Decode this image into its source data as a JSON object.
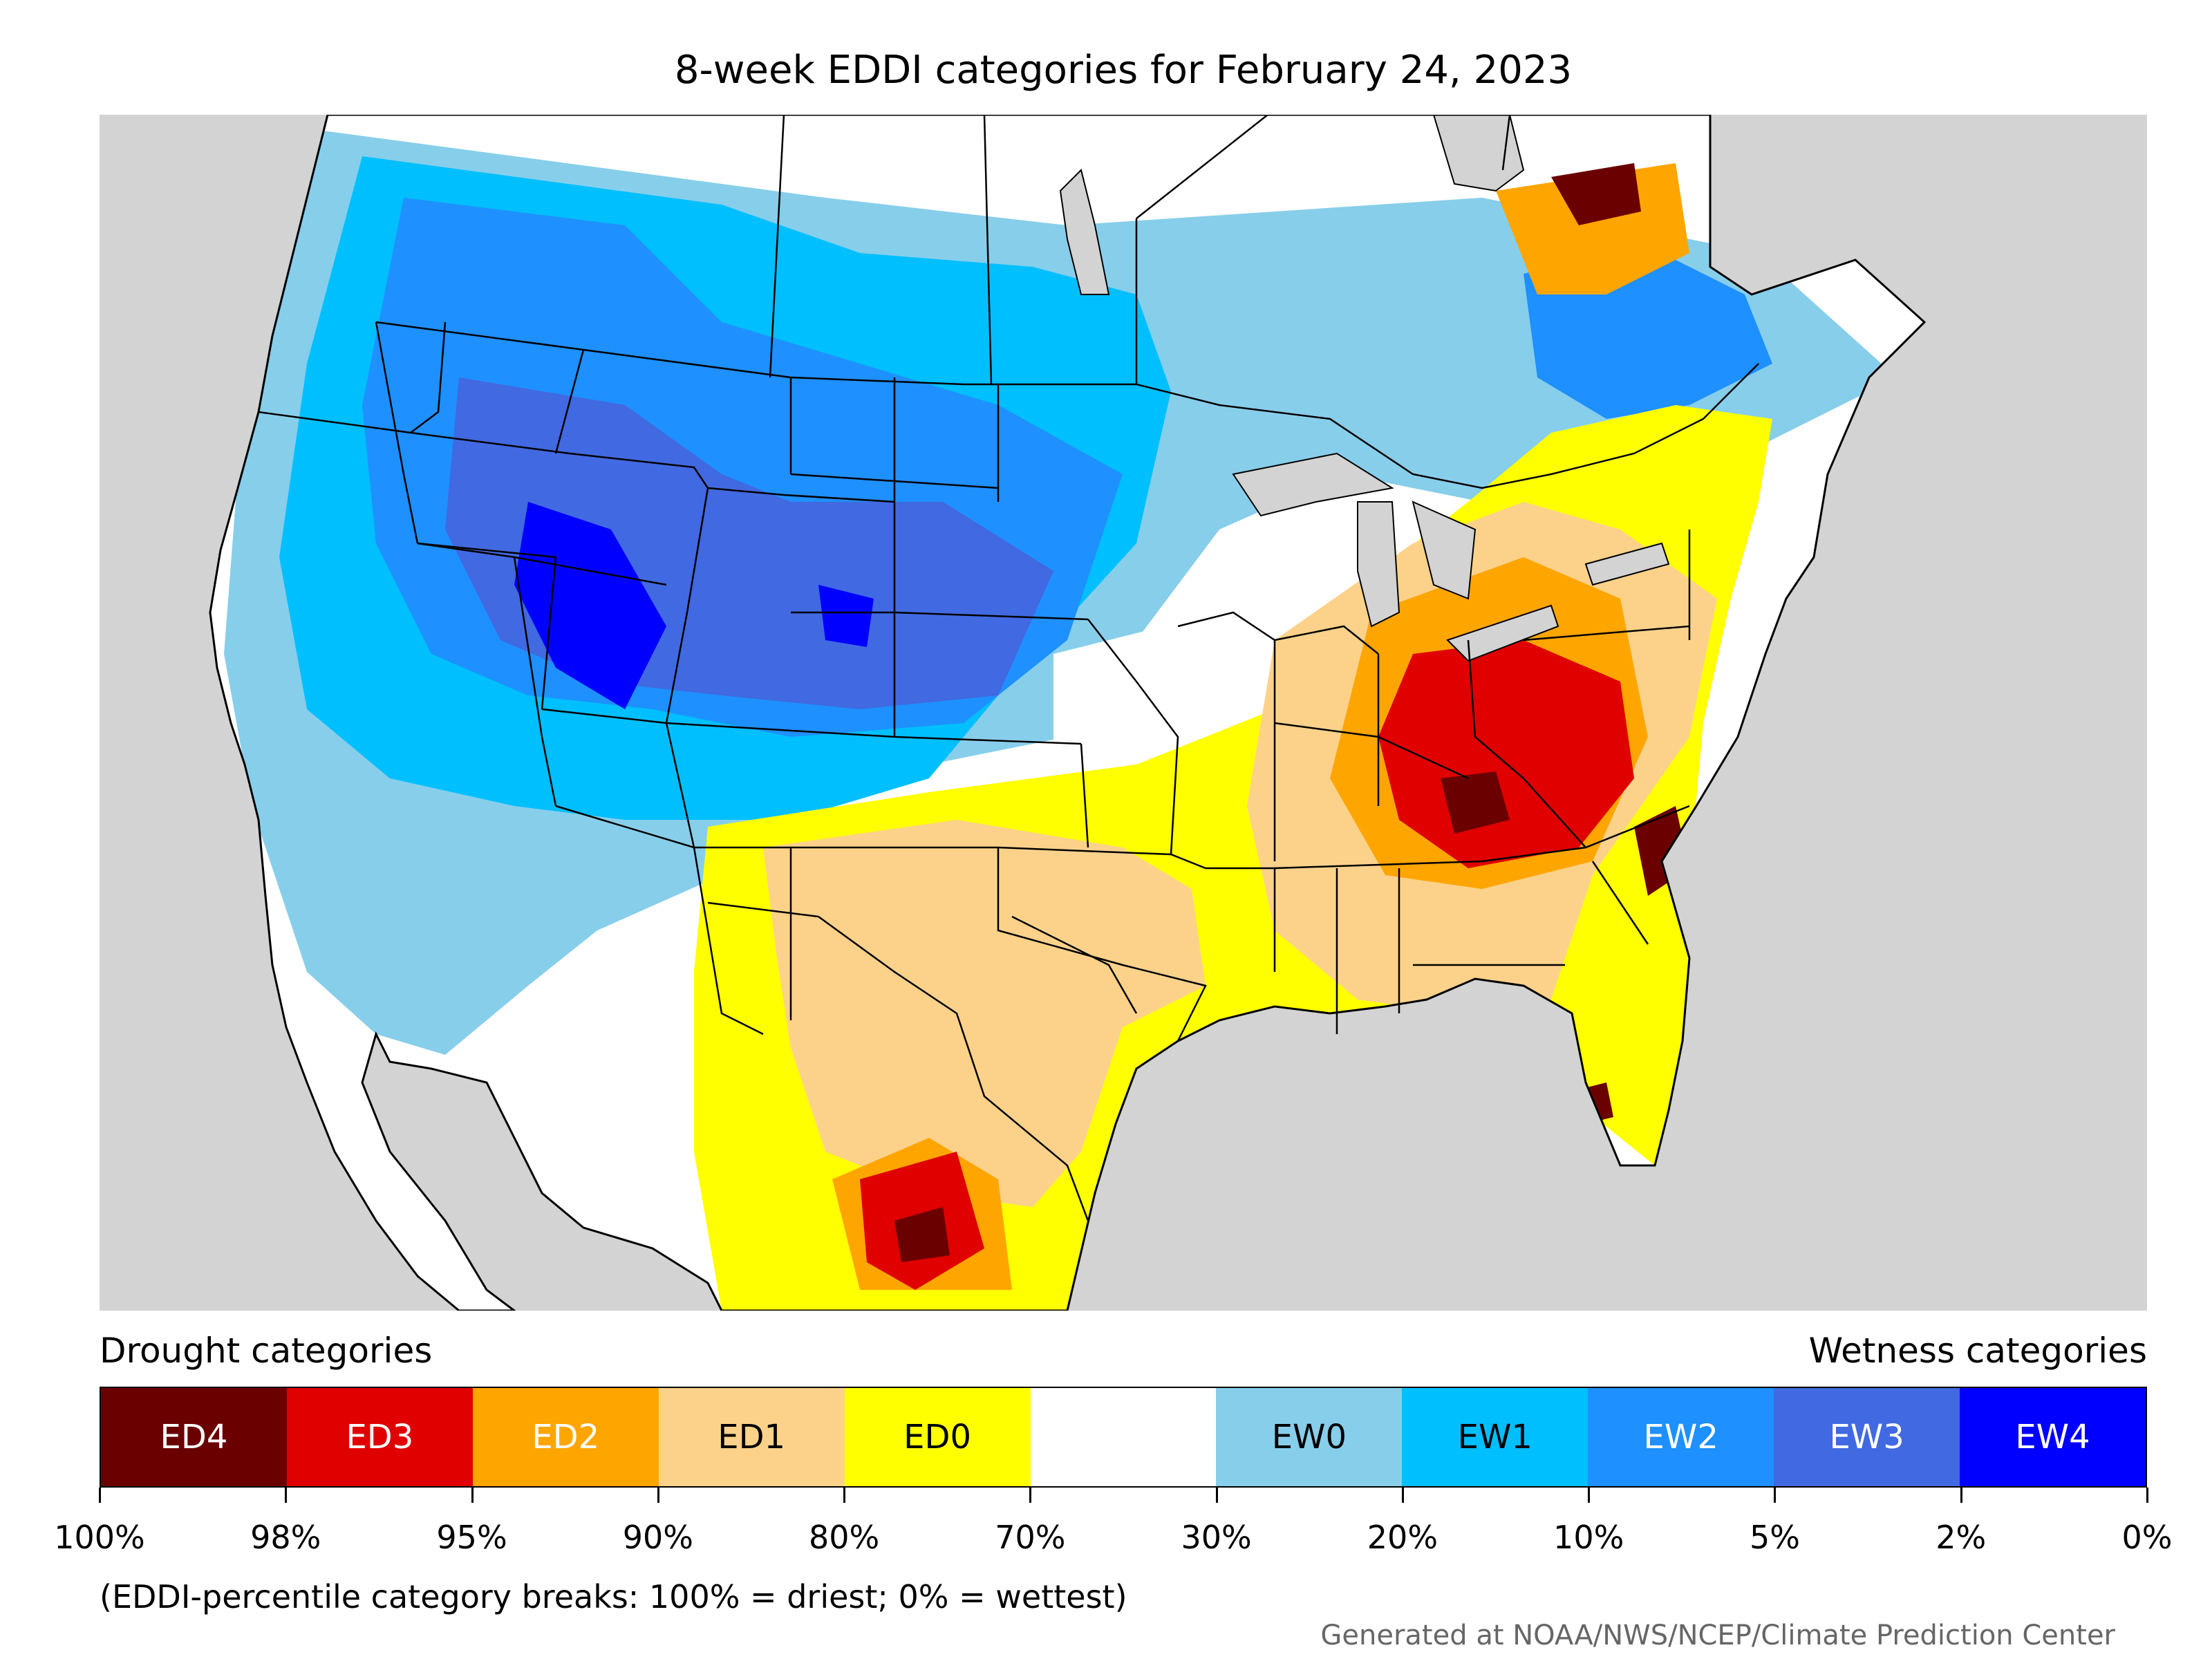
{
  "title": "8-week EDDI categories for February 24, 2023",
  "map": {
    "ocean_color": "#d3d3d3",
    "land_color": "#ffffff",
    "boundary_color": "#000000",
    "region": "Contiguous United States with portions of Canada and Mexico"
  },
  "legend": {
    "drought_heading": "Drought categories",
    "wetness_heading": "Wetness categories",
    "categories": [
      {
        "label": "ED4",
        "color": "#6b0000",
        "text_color": "#ffffff"
      },
      {
        "label": "ED3",
        "color": "#e00000",
        "text_color": "#ffffff"
      },
      {
        "label": "ED2",
        "color": "#ffa500",
        "text_color": "#ffffff"
      },
      {
        "label": "ED1",
        "color": "#fcd28b",
        "text_color": "#000000"
      },
      {
        "label": "ED0",
        "color": "#ffff00",
        "text_color": "#000000"
      },
      {
        "label": "",
        "color": "#ffffff",
        "text_color": "#000000"
      },
      {
        "label": "EW0",
        "color": "#87ceeb",
        "text_color": "#000000"
      },
      {
        "label": "EW1",
        "color": "#00bfff",
        "text_color": "#000000"
      },
      {
        "label": "EW2",
        "color": "#1e90ff",
        "text_color": "#ffffff"
      },
      {
        "label": "EW3",
        "color": "#4169e1",
        "text_color": "#ffffff"
      },
      {
        "label": "EW4",
        "color": "#0000ff",
        "text_color": "#ffffff"
      }
    ],
    "ticks": [
      "100%",
      "98%",
      "95%",
      "90%",
      "80%",
      "70%",
      "30%",
      "20%",
      "10%",
      "5%",
      "2%",
      "0%"
    ],
    "note": "(EDDI-percentile category breaks: 100% = driest; 0% = wettest)"
  },
  "credit": "Generated at NOAA/NWS/NCEP/Climate Prediction Center"
}
